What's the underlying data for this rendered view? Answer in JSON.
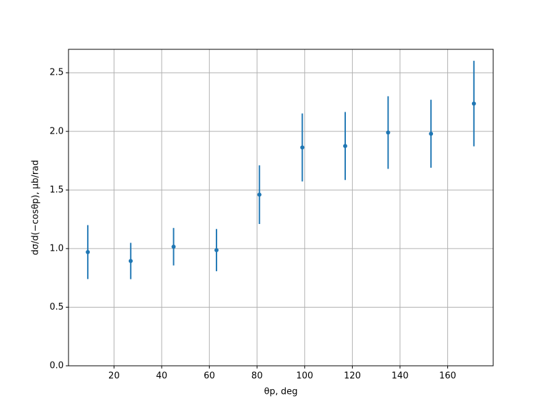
{
  "chart_data": {
    "type": "errorbar",
    "x_label": "θp, deg",
    "y_label": "dσ/d(−cosθp), μb/rad",
    "x": [
      9,
      27,
      45,
      63,
      81,
      99,
      117,
      135,
      153,
      171
    ],
    "values": [
      0.97,
      0.894,
      1.016,
      0.987,
      1.46,
      1.863,
      1.875,
      1.99,
      1.98,
      2.237
    ],
    "errors": [
      0.23,
      0.155,
      0.16,
      0.18,
      0.25,
      0.29,
      0.29,
      0.31,
      0.29,
      0.365
    ],
    "color": "#1f77b4",
    "xlim": [
      0.9,
      179.1
    ],
    "ylim": [
      0,
      2.7
    ],
    "xticks": [
      20,
      40,
      60,
      80,
      100,
      120,
      140,
      160
    ],
    "yticks": [
      {
        "value": 0,
        "label": "0.0"
      },
      0.5,
      {
        "value": 1,
        "label": "1.0"
      },
      1.5,
      {
        "value": 2,
        "label": "2.0"
      },
      2.5
    ],
    "grid": true
  }
}
